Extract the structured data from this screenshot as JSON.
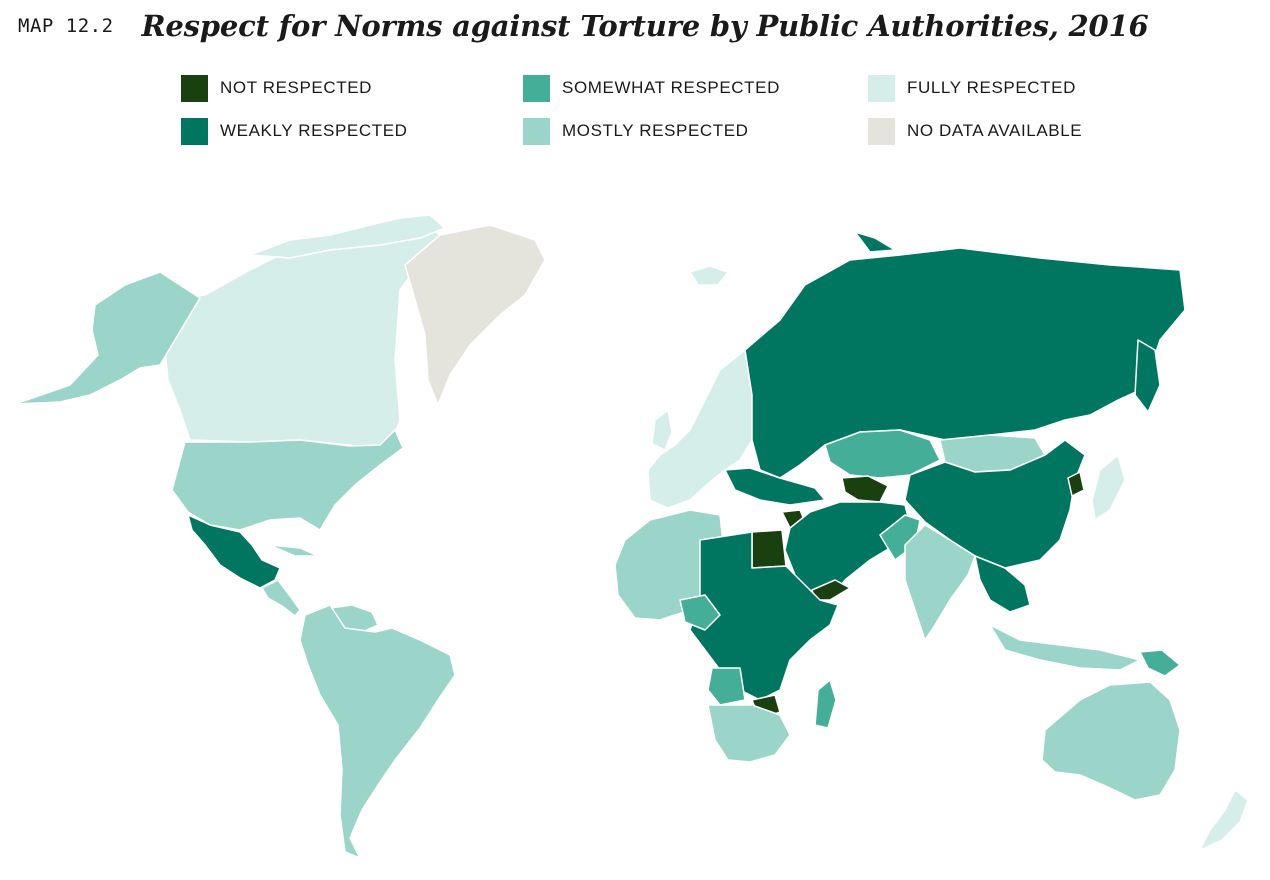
{
  "header": {
    "map_number": "MAP 12.2",
    "title": "Respect for Norms against Torture by Public Authorities, 2016"
  },
  "legend": [
    {
      "label": "NOT RESPECTED",
      "color": "#1a4010"
    },
    {
      "label": "WEAKLY RESPECTED",
      "color": "#007660"
    },
    {
      "label": "SOMEWHAT RESPECTED",
      "color": "#45ae99"
    },
    {
      "label": "MOSTLY RESPECTED",
      "color": "#9bd4c9"
    },
    {
      "label": "FULLY RESPECTED",
      "color": "#d6eeea"
    },
    {
      "label": "NO DATA AVAILABLE",
      "color": "#e4e4dc"
    }
  ],
  "regions": [
    {
      "region": "Canada",
      "category": "FULLY RESPECTED"
    },
    {
      "region": "Greenland",
      "category": "NO DATA AVAILABLE"
    },
    {
      "region": "Alaska",
      "category": "MOSTLY RESPECTED"
    },
    {
      "region": "United States",
      "category": "MOSTLY RESPECTED"
    },
    {
      "region": "Mexico",
      "category": "WEAKLY RESPECTED"
    },
    {
      "region": "Venezuela",
      "category": "SOMEWHAT RESPECTED"
    },
    {
      "region": "South America",
      "category": "MOSTLY RESPECTED"
    },
    {
      "region": "Iceland",
      "category": "FULLY RESPECTED"
    },
    {
      "region": "Western Europe",
      "category": "FULLY RESPECTED"
    },
    {
      "region": "Russia",
      "category": "WEAKLY RESPECTED"
    },
    {
      "region": "Kazakhstan",
      "category": "SOMEWHAT RESPECTED"
    },
    {
      "region": "Mongolia",
      "category": "MOSTLY RESPECTED"
    },
    {
      "region": "China",
      "category": "WEAKLY RESPECTED"
    },
    {
      "region": "North Korea",
      "category": "NOT RESPECTED"
    },
    {
      "region": "Japan",
      "category": "FULLY RESPECTED"
    },
    {
      "region": "Turkmenistan",
      "category": "NOT RESPECTED"
    },
    {
      "region": "Syria",
      "category": "NOT RESPECTED"
    },
    {
      "region": "Egypt",
      "category": "NOT RESPECTED"
    },
    {
      "region": "Yemen",
      "category": "NOT RESPECTED"
    },
    {
      "region": "Zimbabwe",
      "category": "NOT RESPECTED"
    },
    {
      "region": "Middle East",
      "category": "WEAKLY RESPECTED"
    },
    {
      "region": "Pakistan",
      "category": "SOMEWHAT RESPECTED"
    },
    {
      "region": "India",
      "category": "MOSTLY RESPECTED"
    },
    {
      "region": "Southeast Asia",
      "category": "WEAKLY RESPECTED"
    },
    {
      "region": "Indonesia",
      "category": "MOSTLY RESPECTED"
    },
    {
      "region": "Papua New Guinea",
      "category": "SOMEWHAT RESPECTED"
    },
    {
      "region": "Australia",
      "category": "MOSTLY RESPECTED"
    },
    {
      "region": "New Zealand",
      "category": "FULLY RESPECTED"
    },
    {
      "region": "North Africa",
      "category": "MOSTLY RESPECTED"
    },
    {
      "region": "Central Africa",
      "category": "WEAKLY RESPECTED"
    },
    {
      "region": "Nigeria",
      "category": "SOMEWHAT RESPECTED"
    },
    {
      "region": "Angola",
      "category": "SOMEWHAT RESPECTED"
    },
    {
      "region": "Southern Africa",
      "category": "MOSTLY RESPECTED"
    },
    {
      "region": "Madagascar",
      "category": "SOMEWHAT RESPECTED"
    }
  ]
}
